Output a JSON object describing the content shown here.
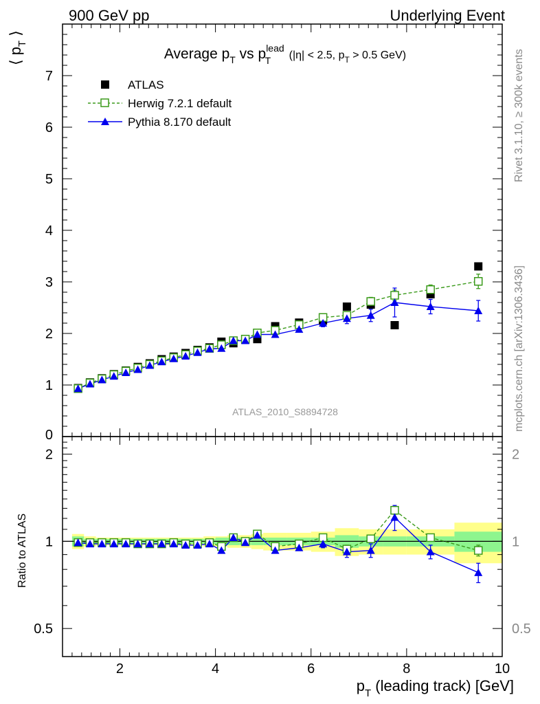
{
  "header": {
    "left": "900 GeV pp",
    "right": "Underlying Event"
  },
  "side_text": {
    "rivet": "Rivet 3.1.10, ≥ 300k events",
    "mcplots": "mcplots.cern.ch [arXiv:1306.3436]"
  },
  "watermark": "ATLAS_2010_S8894728",
  "ratio_ylabel": "Ratio to ATLAS",
  "chart_data": {
    "type": "scatter",
    "title_parts": {
      "main": "Average p",
      "main_sub": "T",
      "vs": " vs p",
      "vs_sup": "lead",
      "vs_sub": "T",
      "cuts_a": " (|η| < 2.5, p",
      "cuts_sub": "T",
      "cuts_b": " > 0.5 GeV)"
    },
    "ylabel": {
      "open": "⟨ p",
      "sub": "T",
      "close": " ⟩"
    },
    "xlabel": {
      "p": "p",
      "sub": "T",
      "rest": " (leading track) [GeV]"
    },
    "xlim": [
      0.8,
      10.0
    ],
    "ylim": [
      0,
      8
    ],
    "ratio_ylim": [
      0.4,
      2.3
    ],
    "x_ticks": [
      2,
      4,
      6,
      8,
      10
    ],
    "x_tick_labels": [
      "2",
      "4",
      "6",
      "8",
      "10"
    ],
    "y_ticks": [
      1,
      2,
      3,
      4,
      5,
      6,
      7
    ],
    "y_tick_labels": [
      "1",
      "2",
      "3",
      "4",
      "5",
      "6",
      "7"
    ],
    "y_zero_label": "0",
    "ratio_ticks": [
      0.5,
      1,
      2
    ],
    "ratio_tick_labels": [
      "0.5",
      "1",
      "2"
    ],
    "legend": [
      {
        "name": "ATLAS",
        "marker": "square-filled",
        "color": "#000000"
      },
      {
        "name": "Herwig 7.2.1 default",
        "marker": "square-open",
        "color": "#3a9a1a",
        "dashed": true
      },
      {
        "name": "Pythia 8.170 default",
        "marker": "triangle",
        "color": "#0000ee"
      }
    ],
    "x": [
      1.125,
      1.375,
      1.625,
      1.875,
      2.125,
      2.375,
      2.625,
      2.875,
      3.125,
      3.375,
      3.625,
      3.875,
      4.125,
      4.375,
      4.625,
      4.875,
      5.25,
      5.75,
      6.25,
      6.75,
      7.25,
      7.75,
      8.5,
      9.5
    ],
    "x_edges": [
      1.0,
      1.25,
      1.5,
      1.75,
      2.0,
      2.25,
      2.5,
      2.75,
      3.0,
      3.25,
      3.5,
      3.75,
      4.0,
      4.25,
      4.5,
      4.75,
      5.0,
      5.5,
      6.0,
      6.5,
      7.0,
      7.5,
      8.0,
      9.0,
      10.0
    ],
    "series": [
      {
        "name": "ATLAS",
        "values": [
          0.94,
          1.05,
          1.13,
          1.21,
          1.28,
          1.35,
          1.42,
          1.5,
          1.55,
          1.62,
          1.68,
          1.73,
          1.84,
          1.81,
          1.88,
          1.89,
          2.14,
          2.21,
          2.25,
          2.52,
          2.56,
          2.16,
          2.76,
          3.3
        ]
      },
      {
        "name": "Herwig 7.2.1 default",
        "values": [
          0.93,
          1.04,
          1.12,
          1.2,
          1.27,
          1.33,
          1.4,
          1.47,
          1.53,
          1.59,
          1.66,
          1.71,
          1.78,
          1.86,
          1.89,
          2.01,
          2.06,
          2.17,
          2.31,
          2.35,
          2.62,
          2.74,
          2.85,
          3.01
        ],
        "errors": [
          0.01,
          0.01,
          0.01,
          0.01,
          0.01,
          0.01,
          0.01,
          0.01,
          0.01,
          0.01,
          0.01,
          0.01,
          0.02,
          0.02,
          0.02,
          0.03,
          0.03,
          0.04,
          0.05,
          0.07,
          0.08,
          0.1,
          0.09,
          0.14
        ]
      },
      {
        "name": "Pythia 8.170 default",
        "values": [
          0.93,
          1.02,
          1.1,
          1.17,
          1.24,
          1.3,
          1.38,
          1.45,
          1.51,
          1.56,
          1.63,
          1.7,
          1.71,
          1.86,
          1.86,
          1.98,
          1.98,
          2.08,
          2.2,
          2.29,
          2.35,
          2.6,
          2.52,
          2.44
        ],
        "errors": [
          0.01,
          0.01,
          0.01,
          0.01,
          0.01,
          0.01,
          0.01,
          0.01,
          0.01,
          0.01,
          0.02,
          0.02,
          0.02,
          0.03,
          0.03,
          0.04,
          0.04,
          0.05,
          0.07,
          0.1,
          0.12,
          0.28,
          0.14,
          0.2
        ]
      }
    ],
    "ratio": {
      "herwig": [
        0.99,
        0.99,
        0.99,
        0.99,
        0.99,
        0.98,
        0.98,
        0.98,
        0.99,
        0.98,
        0.98,
        0.99,
        0.96,
        1.03,
        1.0,
        1.06,
        0.96,
        0.98,
        1.03,
        0.94,
        1.02,
        1.28,
        1.03,
        0.93
      ],
      "herwig_err": [
        0.01,
        0.01,
        0.01,
        0.01,
        0.01,
        0.01,
        0.01,
        0.01,
        0.01,
        0.01,
        0.01,
        0.01,
        0.01,
        0.01,
        0.01,
        0.01,
        0.01,
        0.02,
        0.02,
        0.03,
        0.03,
        0.04,
        0.03,
        0.04
      ],
      "pythia": [
        0.99,
        0.98,
        0.98,
        0.98,
        0.98,
        0.98,
        0.98,
        0.98,
        0.98,
        0.97,
        0.97,
        0.98,
        0.93,
        1.03,
        0.99,
        1.05,
        0.93,
        0.95,
        0.98,
        0.92,
        0.93,
        1.21,
        0.92,
        0.78
      ],
      "pythia_err": [
        0.01,
        0.01,
        0.01,
        0.01,
        0.01,
        0.01,
        0.01,
        0.01,
        0.01,
        0.01,
        0.01,
        0.01,
        0.01,
        0.02,
        0.02,
        0.02,
        0.02,
        0.02,
        0.03,
        0.04,
        0.05,
        0.12,
        0.05,
        0.06
      ],
      "band_inner": [
        0.04,
        0.02,
        0.02,
        0.02,
        0.02,
        0.02,
        0.02,
        0.02,
        0.02,
        0.02,
        0.02,
        0.02,
        0.03,
        0.03,
        0.03,
        0.03,
        0.03,
        0.03,
        0.03,
        0.05,
        0.04,
        0.04,
        0.04,
        0.08
      ],
      "band_outer": [
        0.06,
        0.04,
        0.03,
        0.03,
        0.03,
        0.03,
        0.03,
        0.03,
        0.03,
        0.03,
        0.03,
        0.04,
        0.04,
        0.05,
        0.05,
        0.06,
        0.07,
        0.07,
        0.08,
        0.11,
        0.1,
        0.1,
        0.1,
        0.16
      ]
    },
    "band_colors": {
      "inner": "#8ef58e",
      "outer": "#ffff8a"
    },
    "grid": false,
    "legend_position": "top-left"
  }
}
